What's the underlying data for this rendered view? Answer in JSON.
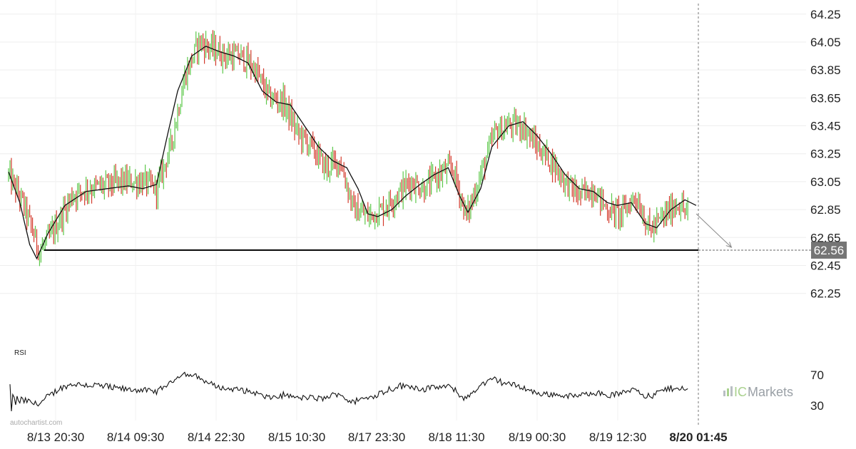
{
  "chart_data": {
    "type": "candlestick",
    "price_axis": {
      "ylim": [
        62.08,
        64.3
      ],
      "ticks": [
        "64.25",
        "64.05",
        "63.85",
        "63.65",
        "63.45",
        "63.25",
        "63.05",
        "62.85",
        "62.65",
        "62.45",
        "62.25"
      ]
    },
    "x_ticks": [
      "8/13 20:30",
      "8/14 09:30",
      "8/14 22:30",
      "8/15 10:30",
      "8/17 23:30",
      "8/18 11:30",
      "8/19 00:30",
      "8/19 12:30",
      "8/20 01:45"
    ],
    "current_time_label": "8/20 01:45",
    "support_level": {
      "value": 62.56,
      "label": "62.56"
    },
    "close_path": [
      [
        0,
        63.1
      ],
      [
        10,
        62.9
      ],
      [
        22,
        62.55
      ],
      [
        32,
        62.7
      ],
      [
        45,
        62.95
      ],
      [
        55,
        63.0
      ],
      [
        68,
        63.02
      ],
      [
        80,
        63.05
      ],
      [
        95,
        63.05
      ],
      [
        105,
        63.0
      ],
      [
        115,
        63.3
      ],
      [
        125,
        63.8
      ],
      [
        135,
        64.05
      ],
      [
        145,
        64.0
      ],
      [
        155,
        63.95
      ],
      [
        165,
        63.95
      ],
      [
        175,
        63.85
      ],
      [
        185,
        63.65
      ],
      [
        195,
        63.62
      ],
      [
        205,
        63.4
      ],
      [
        215,
        63.3
      ],
      [
        225,
        63.15
      ],
      [
        235,
        63.2
      ],
      [
        245,
        62.85
      ],
      [
        255,
        62.8
      ],
      [
        265,
        62.85
      ],
      [
        275,
        62.95
      ],
      [
        285,
        63.05
      ],
      [
        295,
        63.0
      ],
      [
        305,
        63.1
      ],
      [
        315,
        63.15
      ],
      [
        325,
        62.8
      ],
      [
        335,
        63.1
      ],
      [
        345,
        63.4
      ],
      [
        355,
        63.45
      ],
      [
        365,
        63.45
      ],
      [
        375,
        63.3
      ],
      [
        385,
        63.2
      ],
      [
        395,
        63.05
      ],
      [
        405,
        62.95
      ],
      [
        415,
        63.0
      ],
      [
        425,
        62.85
      ],
      [
        435,
        62.82
      ],
      [
        445,
        62.95
      ],
      [
        455,
        62.7
      ],
      [
        465,
        62.8
      ],
      [
        475,
        62.9
      ],
      [
        482,
        62.82
      ]
    ],
    "ma_path": [
      [
        0,
        63.12
      ],
      [
        8,
        62.9
      ],
      [
        15,
        62.6
      ],
      [
        20,
        62.5
      ],
      [
        28,
        62.68
      ],
      [
        40,
        62.88
      ],
      [
        55,
        62.98
      ],
      [
        70,
        63.0
      ],
      [
        85,
        63.02
      ],
      [
        95,
        63.0
      ],
      [
        105,
        63.03
      ],
      [
        112,
        63.35
      ],
      [
        120,
        63.7
      ],
      [
        130,
        63.95
      ],
      [
        140,
        64.02
      ],
      [
        150,
        63.98
      ],
      [
        160,
        63.95
      ],
      [
        170,
        63.9
      ],
      [
        180,
        63.7
      ],
      [
        190,
        63.62
      ],
      [
        200,
        63.6
      ],
      [
        210,
        63.45
      ],
      [
        220,
        63.3
      ],
      [
        230,
        63.2
      ],
      [
        240,
        63.15
      ],
      [
        248,
        63.0
      ],
      [
        255,
        62.82
      ],
      [
        262,
        62.8
      ],
      [
        272,
        62.85
      ],
      [
        282,
        62.95
      ],
      [
        292,
        63.03
      ],
      [
        302,
        63.1
      ],
      [
        312,
        63.15
      ],
      [
        320,
        62.95
      ],
      [
        326,
        62.83
      ],
      [
        335,
        63.0
      ],
      [
        343,
        63.3
      ],
      [
        355,
        63.45
      ],
      [
        365,
        63.48
      ],
      [
        375,
        63.38
      ],
      [
        385,
        63.25
      ],
      [
        395,
        63.1
      ],
      [
        405,
        63.0
      ],
      [
        415,
        62.98
      ],
      [
        425,
        62.9
      ],
      [
        432,
        62.88
      ],
      [
        442,
        62.9
      ],
      [
        452,
        62.75
      ],
      [
        460,
        62.72
      ],
      [
        470,
        62.85
      ],
      [
        480,
        62.92
      ],
      [
        488,
        62.88
      ]
    ],
    "forecast": {
      "from": [
        488,
        62.82
      ],
      "to": [
        513,
        62.58
      ]
    },
    "rsi": {
      "label": "RSI",
      "ticks": [
        "70",
        "30"
      ],
      "ylim": [
        20,
        85
      ]
    }
  },
  "brand": {
    "logo_prefix": "IC",
    "logo_suffix": "Markets",
    "watermark": "autochartist.com"
  }
}
